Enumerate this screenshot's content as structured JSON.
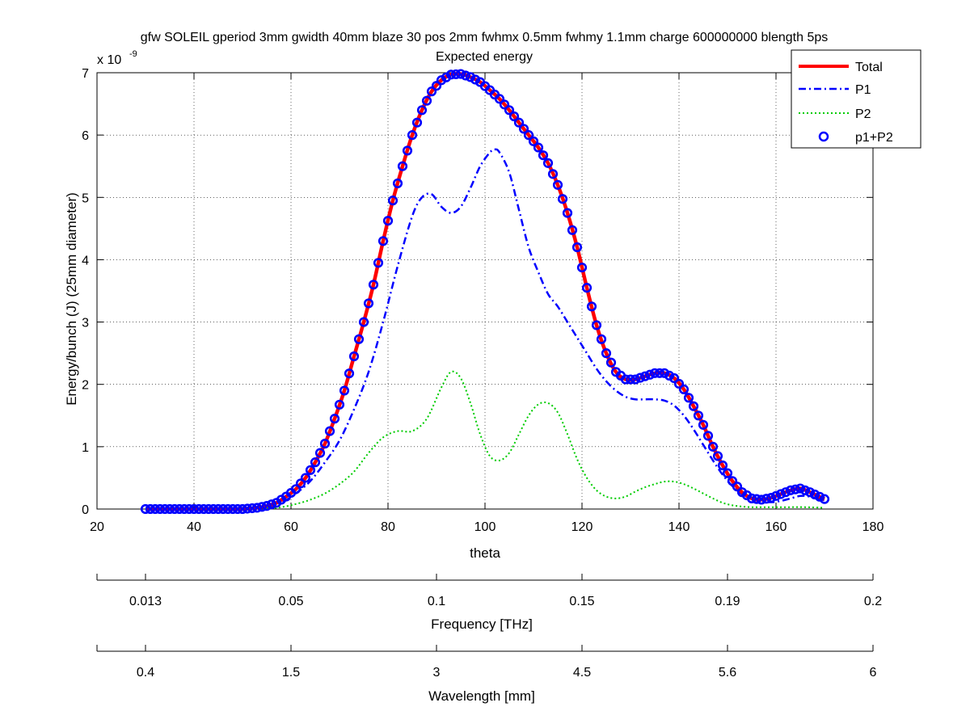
{
  "chart_data": {
    "type": "line",
    "title": "gfw SOLEIL gperiod 3mm gwidth 40mm blaze 30 pos 2mm fwhmx 0.5mm fwhmy 1.1mm charge 600000000 blength 5ps",
    "subtitle": "Expected energy",
    "xlabel": "theta",
    "ylabel": "Energy/bunch (J) (25mm diameter)",
    "y_exponent_label": "x 10",
    "y_exponent_power": "-9",
    "xlim": [
      20,
      180
    ],
    "ylim": [
      0,
      7
    ],
    "grid": true,
    "legend_position": "top-right",
    "x_ticks": [
      "20",
      "40",
      "60",
      "80",
      "100",
      "120",
      "140",
      "160",
      "180"
    ],
    "y_ticks": [
      "0",
      "1",
      "2",
      "3",
      "4",
      "5",
      "6",
      "7"
    ],
    "secondary_axes": [
      {
        "label": "Frequency [THz]",
        "tick_theta": [
          30,
          40,
          60,
          80,
          100,
          120,
          140,
          160,
          180
        ],
        "tick_labels": [
          "",
          "0.013",
          "0.05",
          "0.1",
          "0.15",
          "0.19",
          "0.2"
        ],
        "labeled_theta": [
          30,
          60,
          90,
          120,
          150,
          180
        ]
      },
      {
        "label": "Wavelength [mm]",
        "tick_labels": [
          "0.4",
          "1.5",
          "3",
          "4.5",
          "5.6",
          "6"
        ],
        "labeled_theta": [
          30,
          60,
          90,
          120,
          150,
          180
        ]
      }
    ],
    "series": [
      {
        "name": "Total",
        "color": "#ff0000",
        "style": "solid-thick",
        "x": [
          30,
          35,
          40,
          45,
          50,
          53,
          55,
          57,
          59,
          61,
          63,
          65,
          67,
          69,
          71,
          73,
          75,
          77,
          79,
          81,
          83,
          85,
          87,
          89,
          91,
          93,
          95,
          97,
          99,
          101,
          103,
          105,
          107,
          109,
          111,
          113,
          115,
          117,
          119,
          121,
          123,
          125,
          127,
          129,
          131,
          133,
          135,
          137,
          139,
          141,
          143,
          145,
          147,
          149,
          151,
          153,
          155,
          157,
          159,
          161,
          163,
          165,
          167,
          170
        ],
        "y": [
          0,
          0,
          0,
          0,
          0,
          0.02,
          0.05,
          0.1,
          0.2,
          0.32,
          0.5,
          0.75,
          1.05,
          1.45,
          1.9,
          2.45,
          3.0,
          3.6,
          4.3,
          4.95,
          5.5,
          6.0,
          6.4,
          6.7,
          6.88,
          6.97,
          6.98,
          6.93,
          6.85,
          6.72,
          6.58,
          6.4,
          6.2,
          6.0,
          5.8,
          5.55,
          5.2,
          4.75,
          4.2,
          3.55,
          2.95,
          2.5,
          2.2,
          2.08,
          2.08,
          2.13,
          2.18,
          2.18,
          2.1,
          1.92,
          1.65,
          1.35,
          1.0,
          0.7,
          0.45,
          0.27,
          0.17,
          0.15,
          0.18,
          0.24,
          0.3,
          0.33,
          0.27,
          0.16
        ]
      },
      {
        "name": "P1",
        "color": "#0000ff",
        "style": "dash-dot",
        "x": [
          30,
          40,
          50,
          55,
          58,
          61,
          64,
          67,
          70,
          73,
          76,
          79,
          82,
          85,
          87,
          89,
          91,
          93,
          95,
          97,
          99,
          101,
          102,
          103,
          105,
          107,
          109,
          111,
          113,
          115,
          117,
          119,
          121,
          123,
          125,
          127,
          129,
          131,
          133,
          135,
          137,
          139,
          141,
          143,
          145,
          147,
          149,
          151,
          153,
          155,
          157,
          159,
          161,
          163,
          165,
          167,
          170
        ],
        "y": [
          0,
          0,
          0,
          0.03,
          0.1,
          0.25,
          0.45,
          0.75,
          1.1,
          1.6,
          2.2,
          3.0,
          3.9,
          4.7,
          5.0,
          5.05,
          4.85,
          4.75,
          4.85,
          5.15,
          5.5,
          5.72,
          5.77,
          5.72,
          5.4,
          4.8,
          4.2,
          3.8,
          3.45,
          3.25,
          3.0,
          2.75,
          2.5,
          2.25,
          2.05,
          1.9,
          1.8,
          1.76,
          1.76,
          1.76,
          1.74,
          1.66,
          1.5,
          1.28,
          1.03,
          0.78,
          0.55,
          0.37,
          0.24,
          0.16,
          0.12,
          0.11,
          0.13,
          0.17,
          0.21,
          0.2,
          0.14
        ]
      },
      {
        "name": "P2",
        "color": "#00cc00",
        "style": "dotted",
        "x": [
          30,
          40,
          50,
          55,
          58,
          61,
          64,
          67,
          70,
          73,
          76,
          79,
          82,
          85,
          88,
          91,
          93,
          95,
          97,
          99,
          101,
          103,
          105,
          107,
          109,
          111,
          113,
          115,
          117,
          119,
          121,
          123,
          125,
          127,
          129,
          131,
          133,
          135,
          137,
          139,
          141,
          143,
          145,
          147,
          149,
          151,
          153,
          155,
          157,
          160,
          163,
          166,
          170
        ],
        "y": [
          0,
          0,
          0,
          0.01,
          0.03,
          0.08,
          0.15,
          0.25,
          0.4,
          0.6,
          0.9,
          1.15,
          1.25,
          1.25,
          1.45,
          1.95,
          2.2,
          2.1,
          1.7,
          1.2,
          0.85,
          0.78,
          0.9,
          1.2,
          1.5,
          1.68,
          1.7,
          1.55,
          1.2,
          0.8,
          0.5,
          0.3,
          0.2,
          0.17,
          0.2,
          0.28,
          0.35,
          0.4,
          0.44,
          0.44,
          0.4,
          0.33,
          0.25,
          0.17,
          0.1,
          0.06,
          0.04,
          0.03,
          0.03,
          0.03,
          0.03,
          0.03,
          0.02
        ]
      },
      {
        "name": "p1+P2",
        "color": "#0000ff",
        "style": "circle-markers",
        "x_start": 30,
        "x_end": 170,
        "x_step": 1,
        "same_as": "Total"
      }
    ]
  }
}
